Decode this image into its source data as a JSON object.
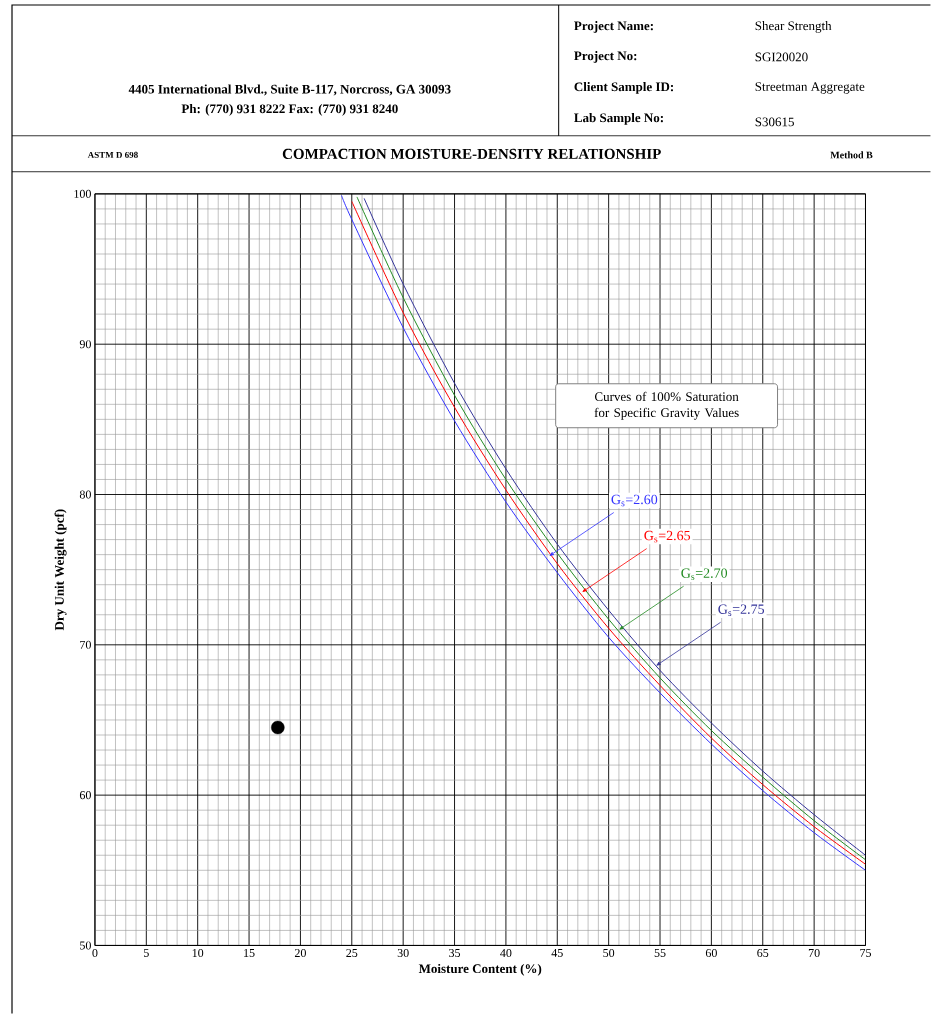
{
  "chart_data": {
    "type": "line",
    "title": "COMPACTION MOISTURE-DENSITY RELATIONSHIP",
    "xlabel": "Moisture Content (%)",
    "ylabel": "Dry Unit Weight (pcf)",
    "xlim": [
      0,
      75
    ],
    "ylim": [
      50,
      100
    ],
    "xticks": [
      0,
      5,
      10,
      15,
      20,
      25,
      30,
      35,
      40,
      45,
      50,
      55,
      60,
      65,
      70,
      75
    ],
    "yticks": [
      50,
      60,
      70,
      80,
      90,
      100
    ],
    "grid": true,
    "series": [
      {
        "color": "#3333ff",
        "marker": "none",
        "x": [
          24,
          25,
          30,
          35,
          40,
          45,
          50,
          55,
          60,
          65,
          70,
          75
        ],
        "values": [
          99.9,
          98.3,
          91.1,
          84.9,
          79.5,
          74.8,
          70.5,
          66.8,
          63.4,
          60.3,
          57.5,
          55.0
        ]
      },
      {
        "color": "#ff0000",
        "marker": "none",
        "x": [
          25,
          30,
          35,
          40,
          45,
          50,
          55,
          60,
          65,
          70,
          75
        ],
        "values": [
          99.5,
          92.1,
          85.8,
          80.3,
          75.4,
          71.1,
          67.3,
          63.8,
          60.7,
          57.9,
          55.4
        ]
      },
      {
        "color": "#228b22",
        "marker": "none",
        "x": [
          25.5,
          30,
          35,
          40,
          45,
          50,
          55,
          60,
          65,
          70,
          75
        ],
        "values": [
          99.8,
          93.1,
          86.6,
          81.0,
          76.1,
          71.7,
          67.8,
          64.3,
          61.2,
          58.3,
          55.7
        ]
      },
      {
        "color": "#333399",
        "marker": "none",
        "x": [
          26.2,
          30,
          35,
          40,
          45,
          50,
          55,
          60,
          65,
          70,
          75
        ],
        "values": [
          99.7,
          94.0,
          87.4,
          81.7,
          76.7,
          72.3,
          68.3,
          64.8,
          61.6,
          58.7,
          56.0
        ]
      },
      {
        "type": "scatter",
        "color": "#000000",
        "marker": "circle",
        "x": [
          17.8
        ],
        "values": [
          64.5
        ]
      }
    ],
    "annotations": [
      "4405 International Blvd., Suite B-117, Norcross, GA 30093",
      "Ph: (770) 931 8222  Fax: (770) 931 8240",
      "Project Name:",
      "Shear Strength",
      "Project No:",
      "SGI20020",
      "Client Sample ID:",
      "Streetman Aggregate",
      "Lab Sample No:",
      "S30615",
      "ASTM D 698",
      "Method  B",
      "Curves of 100% Saturation for Specific Gravity Values",
      {
        "text": "G$_{s}$=2.60",
        "x": 44.2,
        "y": 75.9
      },
      {
        "text": "G$_{s}$=2.65",
        "x": 47.4,
        "y": 73.5
      },
      {
        "text": "G$_{s}$=2.70",
        "x": 51.0,
        "y": 71.0
      },
      {
        "text": "G$_{s}$=2.75",
        "x": 54.6,
        "y": 68.6
      }
    ]
  }
}
